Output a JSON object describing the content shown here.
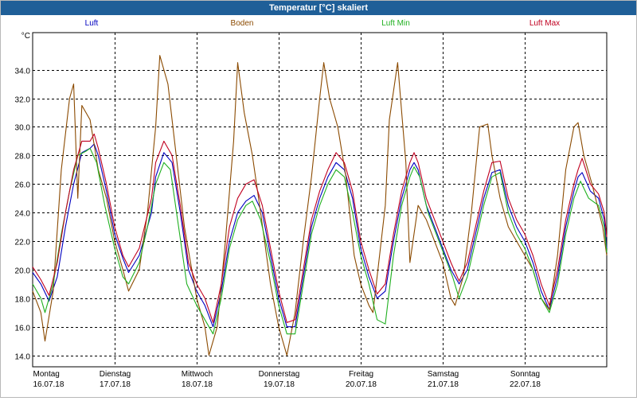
{
  "window": {
    "title": "Temperatur [°C] skaliert"
  },
  "chart_data": {
    "type": "line",
    "title": "Temperatur [°C] skaliert",
    "ylabel": "°C",
    "ylim": [
      13.2,
      36.6
    ],
    "yticks": [
      14.0,
      16.0,
      18.0,
      20.0,
      22.0,
      24.0,
      26.0,
      28.0,
      30.0,
      32.0,
      34.0
    ],
    "xlim": [
      0,
      7
    ],
    "x_ticks": [
      {
        "x": 0,
        "day": "Montag",
        "date": "16.07.18"
      },
      {
        "x": 1,
        "day": "Dienstag",
        "date": "17.07.18"
      },
      {
        "x": 2,
        "day": "Mittwoch",
        "date": "18.07.18"
      },
      {
        "x": 3,
        "day": "Donnerstag",
        "date": "19.07.18"
      },
      {
        "x": 4,
        "day": "Freitag",
        "date": "20.07.18"
      },
      {
        "x": 5,
        "day": "Samstag",
        "date": "21.07.18"
      },
      {
        "x": 6,
        "day": "Sonntag",
        "date": "22.07.18"
      }
    ],
    "grid": true,
    "legend_position": "top",
    "series": [
      {
        "name": "Luft",
        "color": "#0000c0",
        "points": [
          [
            0,
            19.8
          ],
          [
            0.1,
            19.0
          ],
          [
            0.2,
            17.8
          ],
          [
            0.3,
            19.5
          ],
          [
            0.4,
            23.0
          ],
          [
            0.5,
            26.0
          ],
          [
            0.6,
            28.2
          ],
          [
            0.7,
            28.5
          ],
          [
            0.75,
            28.8
          ],
          [
            0.8,
            28.0
          ],
          [
            0.9,
            25.5
          ],
          [
            1.0,
            22.5
          ],
          [
            1.1,
            20.8
          ],
          [
            1.17,
            19.8
          ],
          [
            1.3,
            21.0
          ],
          [
            1.45,
            24.0
          ],
          [
            1.5,
            26.5
          ],
          [
            1.6,
            28.2
          ],
          [
            1.7,
            27.5
          ],
          [
            1.8,
            24.0
          ],
          [
            1.9,
            20.0
          ],
          [
            2.0,
            18.5
          ],
          [
            2.1,
            17.5
          ],
          [
            2.2,
            16.0
          ],
          [
            2.3,
            18.5
          ],
          [
            2.4,
            22.0
          ],
          [
            2.5,
            24.0
          ],
          [
            2.6,
            24.8
          ],
          [
            2.7,
            25.2
          ],
          [
            2.8,
            24.0
          ],
          [
            2.9,
            21.0
          ],
          [
            3.0,
            18.0
          ],
          [
            3.1,
            16.0
          ],
          [
            3.2,
            16.0
          ],
          [
            3.3,
            19.5
          ],
          [
            3.4,
            23.0
          ],
          [
            3.5,
            25.0
          ],
          [
            3.6,
            26.5
          ],
          [
            3.7,
            27.5
          ],
          [
            3.8,
            27.0
          ],
          [
            3.9,
            25.0
          ],
          [
            4.0,
            21.5
          ],
          [
            4.1,
            19.5
          ],
          [
            4.2,
            18.0
          ],
          [
            4.3,
            18.5
          ],
          [
            4.4,
            22.0
          ],
          [
            4.5,
            25.0
          ],
          [
            4.6,
            27.0
          ],
          [
            4.65,
            27.5
          ],
          [
            4.7,
            27.0
          ],
          [
            4.8,
            24.5
          ],
          [
            4.9,
            23.0
          ],
          [
            5.0,
            21.5
          ],
          [
            5.1,
            20.0
          ],
          [
            5.2,
            19.0
          ],
          [
            5.3,
            20.0
          ],
          [
            5.4,
            22.5
          ],
          [
            5.5,
            25.0
          ],
          [
            5.6,
            26.8
          ],
          [
            5.7,
            27.0
          ],
          [
            5.8,
            24.5
          ],
          [
            5.9,
            23.0
          ],
          [
            6.0,
            22.0
          ],
          [
            6.1,
            20.5
          ],
          [
            6.2,
            18.5
          ],
          [
            6.3,
            17.2
          ],
          [
            6.4,
            19.5
          ],
          [
            6.5,
            23.0
          ],
          [
            6.6,
            25.5
          ],
          [
            6.65,
            26.5
          ],
          [
            6.7,
            26.8
          ],
          [
            6.8,
            25.5
          ],
          [
            6.9,
            25.0
          ],
          [
            6.97,
            23.5
          ],
          [
            7.0,
            21.5
          ]
        ]
      },
      {
        "name": "Boden",
        "color": "#8b4a00",
        "points": [
          [
            0,
            18.5
          ],
          [
            0.1,
            17.0
          ],
          [
            0.15,
            15.0
          ],
          [
            0.25,
            18.5
          ],
          [
            0.35,
            27.0
          ],
          [
            0.45,
            32.0
          ],
          [
            0.5,
            33.0
          ],
          [
            0.55,
            25.0
          ],
          [
            0.6,
            31.5
          ],
          [
            0.7,
            30.5
          ],
          [
            0.8,
            27.0
          ],
          [
            0.9,
            25.0
          ],
          [
            1.0,
            22.0
          ],
          [
            1.1,
            20.0
          ],
          [
            1.17,
            18.5
          ],
          [
            1.3,
            20.0
          ],
          [
            1.4,
            24.0
          ],
          [
            1.5,
            30.0
          ],
          [
            1.55,
            35.0
          ],
          [
            1.65,
            33.0
          ],
          [
            1.75,
            28.0
          ],
          [
            1.85,
            23.0
          ],
          [
            2.0,
            18.0
          ],
          [
            2.1,
            16.0
          ],
          [
            2.15,
            14.0
          ],
          [
            2.25,
            16.0
          ],
          [
            2.35,
            22.0
          ],
          [
            2.45,
            29.0
          ],
          [
            2.5,
            34.5
          ],
          [
            2.58,
            31.0
          ],
          [
            2.68,
            28.0
          ],
          [
            2.78,
            24.0
          ],
          [
            2.9,
            19.0
          ],
          [
            3.0,
            16.0
          ],
          [
            3.1,
            14.0
          ],
          [
            3.2,
            17.0
          ],
          [
            3.3,
            22.0
          ],
          [
            3.4,
            26.5
          ],
          [
            3.5,
            32.0
          ],
          [
            3.55,
            34.5
          ],
          [
            3.62,
            32.0
          ],
          [
            3.72,
            30.0
          ],
          [
            3.82,
            26.5
          ],
          [
            3.92,
            21.0
          ],
          [
            4.0,
            19.0
          ],
          [
            4.1,
            17.5
          ],
          [
            4.15,
            17.0
          ],
          [
            4.2,
            19.5
          ],
          [
            4.3,
            24.5
          ],
          [
            4.35,
            30.5
          ],
          [
            4.45,
            34.5
          ],
          [
            4.5,
            31.0
          ],
          [
            4.55,
            27.5
          ],
          [
            4.6,
            20.5
          ],
          [
            4.7,
            24.5
          ],
          [
            4.8,
            23.5
          ],
          [
            4.9,
            22.0
          ],
          [
            5.0,
            20.5
          ],
          [
            5.1,
            18.0
          ],
          [
            5.15,
            17.5
          ],
          [
            5.25,
            19.5
          ],
          [
            5.35,
            24.0
          ],
          [
            5.45,
            30.0
          ],
          [
            5.55,
            30.2
          ],
          [
            5.6,
            28.0
          ],
          [
            5.7,
            25.0
          ],
          [
            5.8,
            23.0
          ],
          [
            5.95,
            21.5
          ],
          [
            6.1,
            20.0
          ],
          [
            6.2,
            18.0
          ],
          [
            6.3,
            17.2
          ],
          [
            6.4,
            21.0
          ],
          [
            6.5,
            27.0
          ],
          [
            6.6,
            30.0
          ],
          [
            6.65,
            30.3
          ],
          [
            6.72,
            28.0
          ],
          [
            6.82,
            26.0
          ],
          [
            6.95,
            23.0
          ],
          [
            7.0,
            21.0
          ]
        ]
      },
      {
        "name": "Luft Min",
        "color": "#20b020",
        "points": [
          [
            0,
            19.0
          ],
          [
            0.1,
            18.0
          ],
          [
            0.15,
            17.0
          ],
          [
            0.25,
            19.0
          ],
          [
            0.35,
            22.5
          ],
          [
            0.45,
            25.5
          ],
          [
            0.55,
            28.0
          ],
          [
            0.65,
            28.3
          ],
          [
            0.7,
            28.5
          ],
          [
            0.78,
            27.5
          ],
          [
            0.88,
            24.5
          ],
          [
            1.0,
            21.5
          ],
          [
            1.1,
            19.5
          ],
          [
            1.17,
            19.0
          ],
          [
            1.3,
            20.5
          ],
          [
            1.4,
            23.0
          ],
          [
            1.5,
            26.0
          ],
          [
            1.6,
            27.5
          ],
          [
            1.68,
            27.0
          ],
          [
            1.78,
            23.0
          ],
          [
            1.88,
            19.0
          ],
          [
            2.0,
            17.5
          ],
          [
            2.1,
            16.5
          ],
          [
            2.2,
            15.5
          ],
          [
            2.3,
            18.0
          ],
          [
            2.4,
            21.5
          ],
          [
            2.5,
            23.5
          ],
          [
            2.6,
            24.5
          ],
          [
            2.68,
            24.8
          ],
          [
            2.78,
            23.5
          ],
          [
            2.9,
            20.5
          ],
          [
            3.0,
            17.5
          ],
          [
            3.1,
            15.5
          ],
          [
            3.2,
            15.5
          ],
          [
            3.3,
            19.0
          ],
          [
            3.4,
            22.5
          ],
          [
            3.5,
            24.5
          ],
          [
            3.6,
            26.0
          ],
          [
            3.7,
            27.0
          ],
          [
            3.8,
            26.5
          ],
          [
            3.9,
            24.0
          ],
          [
            4.0,
            21.0
          ],
          [
            4.1,
            19.0
          ],
          [
            4.2,
            16.5
          ],
          [
            4.3,
            16.2
          ],
          [
            4.4,
            21.0
          ],
          [
            4.5,
            24.5
          ],
          [
            4.6,
            26.5
          ],
          [
            4.65,
            27.2
          ],
          [
            4.72,
            26.5
          ],
          [
            4.82,
            24.0
          ],
          [
            4.92,
            22.5
          ],
          [
            5.02,
            21.0
          ],
          [
            5.12,
            19.5
          ],
          [
            5.2,
            18.0
          ],
          [
            5.3,
            19.5
          ],
          [
            5.4,
            22.0
          ],
          [
            5.5,
            24.5
          ],
          [
            5.6,
            26.5
          ],
          [
            5.7,
            26.8
          ],
          [
            5.8,
            24.0
          ],
          [
            5.9,
            22.5
          ],
          [
            6.0,
            21.5
          ],
          [
            6.1,
            20.0
          ],
          [
            6.2,
            18.0
          ],
          [
            6.3,
            17.0
          ],
          [
            6.4,
            19.0
          ],
          [
            6.5,
            22.5
          ],
          [
            6.6,
            25.0
          ],
          [
            6.68,
            26.2
          ],
          [
            6.78,
            25.0
          ],
          [
            6.9,
            24.5
          ],
          [
            6.97,
            23.0
          ],
          [
            7.0,
            21.2
          ]
        ]
      },
      {
        "name": "Luft Max",
        "color": "#c00020",
        "points": [
          [
            0,
            20.2
          ],
          [
            0.1,
            19.3
          ],
          [
            0.2,
            18.2
          ],
          [
            0.3,
            20.5
          ],
          [
            0.4,
            24.0
          ],
          [
            0.5,
            27.0
          ],
          [
            0.6,
            29.0
          ],
          [
            0.7,
            29.0
          ],
          [
            0.75,
            29.5
          ],
          [
            0.8,
            28.5
          ],
          [
            0.9,
            26.0
          ],
          [
            1.0,
            23.0
          ],
          [
            1.1,
            21.0
          ],
          [
            1.17,
            20.2
          ],
          [
            1.3,
            21.5
          ],
          [
            1.45,
            25.0
          ],
          [
            1.5,
            27.5
          ],
          [
            1.6,
            29.0
          ],
          [
            1.7,
            28.0
          ],
          [
            1.8,
            24.5
          ],
          [
            1.9,
            20.5
          ],
          [
            2.0,
            19.0
          ],
          [
            2.1,
            18.0
          ],
          [
            2.2,
            16.3
          ],
          [
            2.3,
            19.0
          ],
          [
            2.4,
            23.0
          ],
          [
            2.5,
            25.0
          ],
          [
            2.6,
            26.0
          ],
          [
            2.7,
            26.3
          ],
          [
            2.8,
            24.5
          ],
          [
            2.9,
            21.5
          ],
          [
            3.0,
            18.5
          ],
          [
            3.1,
            16.3
          ],
          [
            3.2,
            16.5
          ],
          [
            3.3,
            20.0
          ],
          [
            3.4,
            23.5
          ],
          [
            3.5,
            25.5
          ],
          [
            3.6,
            27.0
          ],
          [
            3.7,
            28.2
          ],
          [
            3.8,
            27.5
          ],
          [
            3.9,
            25.5
          ],
          [
            4.0,
            22.0
          ],
          [
            4.1,
            20.0
          ],
          [
            4.2,
            18.3
          ],
          [
            4.3,
            19.0
          ],
          [
            4.4,
            22.5
          ],
          [
            4.5,
            25.5
          ],
          [
            4.6,
            27.5
          ],
          [
            4.65,
            28.2
          ],
          [
            4.7,
            27.5
          ],
          [
            4.8,
            25.0
          ],
          [
            4.9,
            23.5
          ],
          [
            5.0,
            22.0
          ],
          [
            5.1,
            20.5
          ],
          [
            5.2,
            19.2
          ],
          [
            5.3,
            20.5
          ],
          [
            5.4,
            23.0
          ],
          [
            5.5,
            25.5
          ],
          [
            5.6,
            27.5
          ],
          [
            5.7,
            27.6
          ],
          [
            5.8,
            25.0
          ],
          [
            5.9,
            23.5
          ],
          [
            6.0,
            22.5
          ],
          [
            6.1,
            21.0
          ],
          [
            6.2,
            19.0
          ],
          [
            6.3,
            17.5
          ],
          [
            6.4,
            20.0
          ],
          [
            6.5,
            23.5
          ],
          [
            6.6,
            26.0
          ],
          [
            6.65,
            27.0
          ],
          [
            6.7,
            27.8
          ],
          [
            6.8,
            26.0
          ],
          [
            6.9,
            25.3
          ],
          [
            6.97,
            24.0
          ],
          [
            7.0,
            22.3
          ]
        ]
      }
    ]
  }
}
